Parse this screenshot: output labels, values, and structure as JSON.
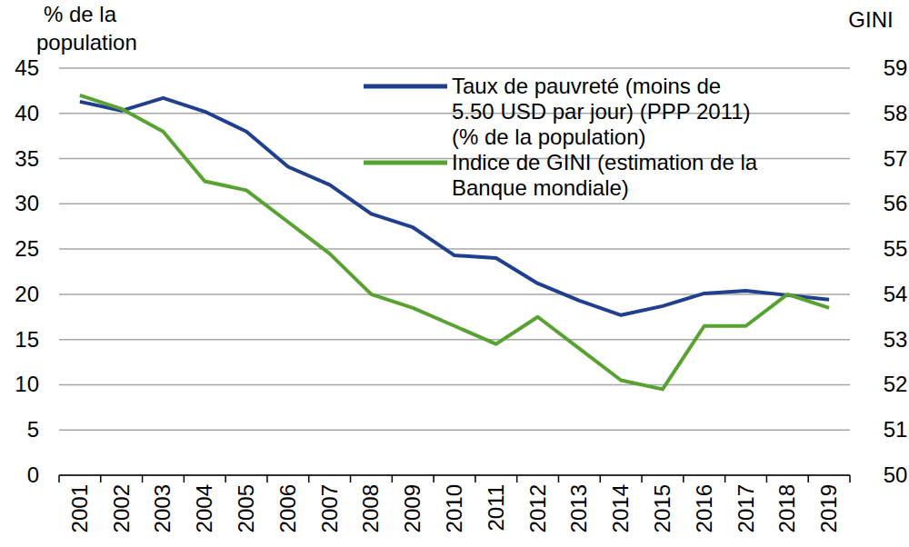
{
  "chart_data": {
    "type": "line",
    "y_label": [
      "% de la",
      "population"
    ],
    "y2_label": "GINI",
    "categories": [
      "2001",
      "2002",
      "2003",
      "2004",
      "2005",
      "2006",
      "2007",
      "2008",
      "2009",
      "2010",
      "2011",
      "2012",
      "2013",
      "2014",
      "2015",
      "2016",
      "2017",
      "2018",
      "2019"
    ],
    "series": [
      {
        "name": "Taux de pauvreté (moins de\n5.50 USD par jour) (PPP 2011)\n(% de la population)",
        "color": "#203f8f",
        "values": [
          41.3,
          40.3,
          41.7,
          40.2,
          38.0,
          34.1,
          32.1,
          28.9,
          27.4,
          24.3,
          24.0,
          21.2,
          19.3,
          17.7,
          18.7,
          20.1,
          20.4,
          19.9,
          19.4
        ]
      },
      {
        "name": "Indice de GINI (estimation de la\nBanque mondiale)",
        "color": "#58a231",
        "axis": "y2",
        "values": [
          58.4,
          58.1,
          57.6,
          56.5,
          56.3,
          55.6,
          54.9,
          54.0,
          53.7,
          53.3,
          52.9,
          53.5,
          52.8,
          52.1,
          51.9,
          53.3,
          53.3,
          54.0,
          53.7
        ]
      }
    ],
    "ylim": [
      0,
      45
    ],
    "yticks": [
      0,
      5,
      10,
      15,
      20,
      25,
      30,
      35,
      40,
      45
    ],
    "y2lim": [
      50,
      59
    ],
    "y2ticks": [
      50,
      51,
      52,
      53,
      54,
      55,
      56,
      57,
      58,
      59
    ],
    "grid": true,
    "legend": "top-right"
  }
}
